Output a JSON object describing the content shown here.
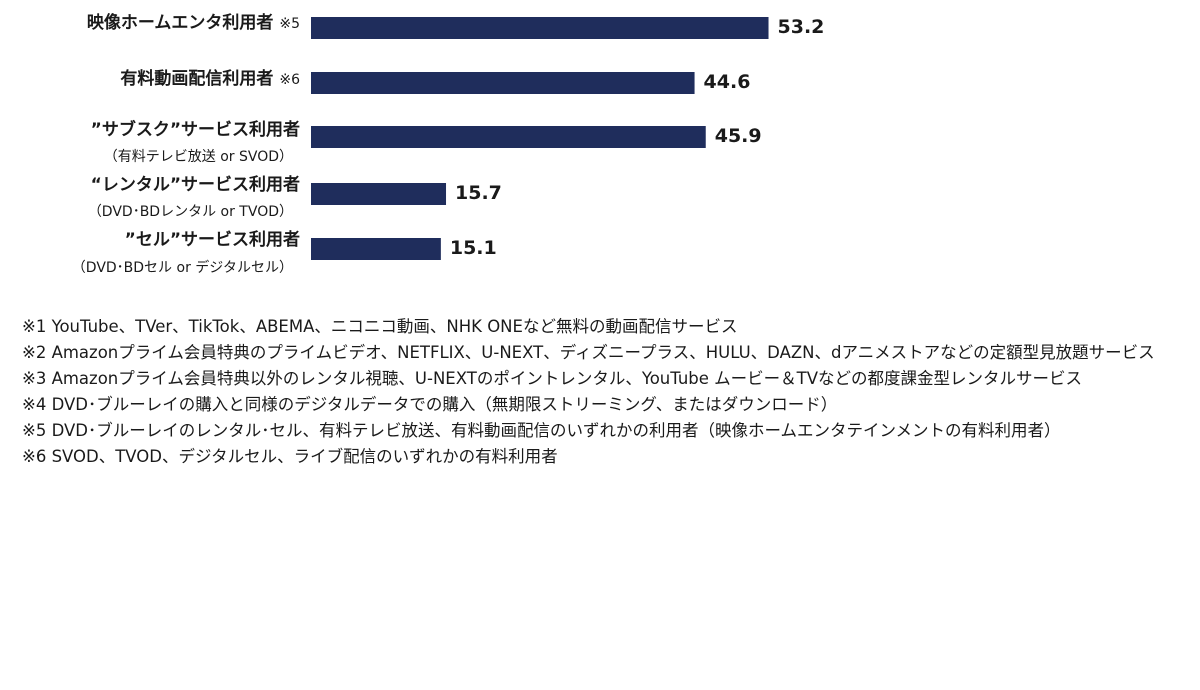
{
  "chart_data": {
    "type": "bar",
    "orientation": "horizontal",
    "bar_color": "#1f2d5c",
    "xlim": [
      0,
      100
    ],
    "categories": [
      {
        "label": "映像ホームエンタ利用者",
        "note": "※5",
        "sub": ""
      },
      {
        "label": "有料動画配信利用者",
        "note": "※6",
        "sub": ""
      },
      {
        "label": "”サブスク”サービス利用者",
        "note": "",
        "sub": "（有料テレビ放送 or SVOD）"
      },
      {
        "label": "“レンタル”サービス利用者",
        "note": "",
        "sub": "（DVD･BDレンタル or TVOD）"
      },
      {
        "label": "”セル”サービス利用者",
        "note": "",
        "sub": "（DVD･BDセル or デジタルセル）"
      }
    ],
    "values": [
      53.2,
      44.6,
      45.9,
      15.7,
      15.1
    ]
  },
  "footnotes": [
    "※1 YouTube、TVer、TikTok、ABEMA、ニコニコ動画、NHK ONEなど無料の動画配信サービス",
    "※2 Amazonプライム会員特典のプライムビデオ、NETFLIX、U-NEXT、ディズニープラス、HULU、DAZN、dアニメストアなどの定額型見放題サービス",
    "※3 Amazonプライム会員特典以外のレンタル視聴、U-NEXTのポイントレンタル、YouTube ムービー＆TVなどの都度課金型レンタルサービス",
    "※4 DVD･ブルーレイの購入と同様のデジタルデータでの購入（無期限ストリーミング、またはダウンロード）",
    "※5 DVD･ブルーレイのレンタル･セル、有料テレビ放送、有料動画配信のいずれかの利用者（映像ホームエンタテインメントの有料利用者）",
    "※6 SVOD、TVOD、デジタルセル、ライブ配信のいずれかの有料利用者"
  ]
}
